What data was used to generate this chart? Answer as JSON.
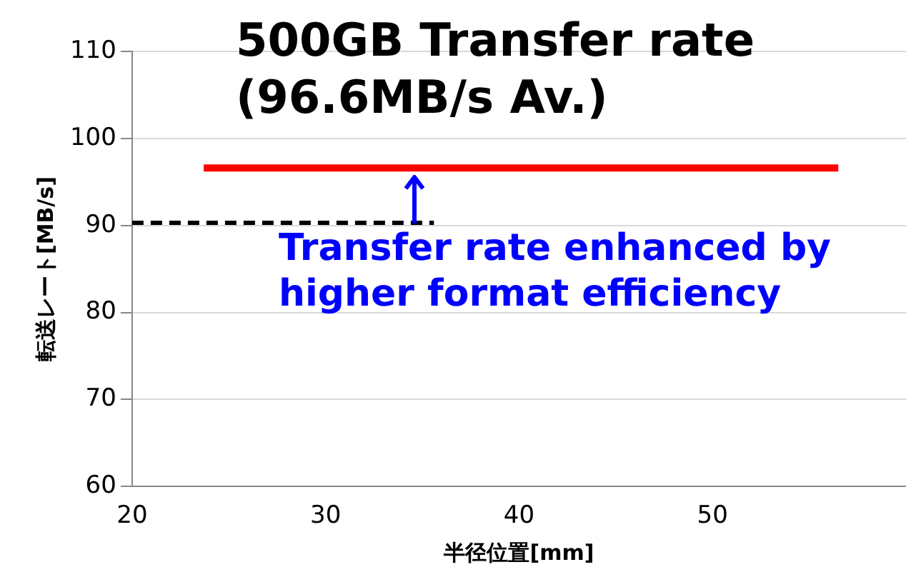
{
  "chart_data": {
    "type": "line",
    "xlabel": "半径位置[mm]",
    "ylabel": "転送レート[MB/s]",
    "xlim": [
      20,
      60
    ],
    "xticks": [
      20,
      30,
      40,
      50
    ],
    "ylim": [
      60,
      110
    ],
    "yticks": [
      60,
      70,
      80,
      90,
      100,
      110
    ],
    "grid": "y",
    "legend": false,
    "marker": "none",
    "series": [
      {
        "name": "500GB Transfer rate (96.6MB/s Av.)",
        "color": "#ff0000",
        "x": [
          23.7,
          56.5
        ],
        "values": [
          96.6,
          96.6
        ],
        "line_style": "solid"
      },
      {
        "color": "#000000",
        "x": [
          20,
          35.6
        ],
        "values": [
          90.3,
          90.3
        ],
        "line_style": "dashed"
      }
    ],
    "annotations": [
      "Transfer rate enhanced by higher format efficiency"
    ]
  }
}
